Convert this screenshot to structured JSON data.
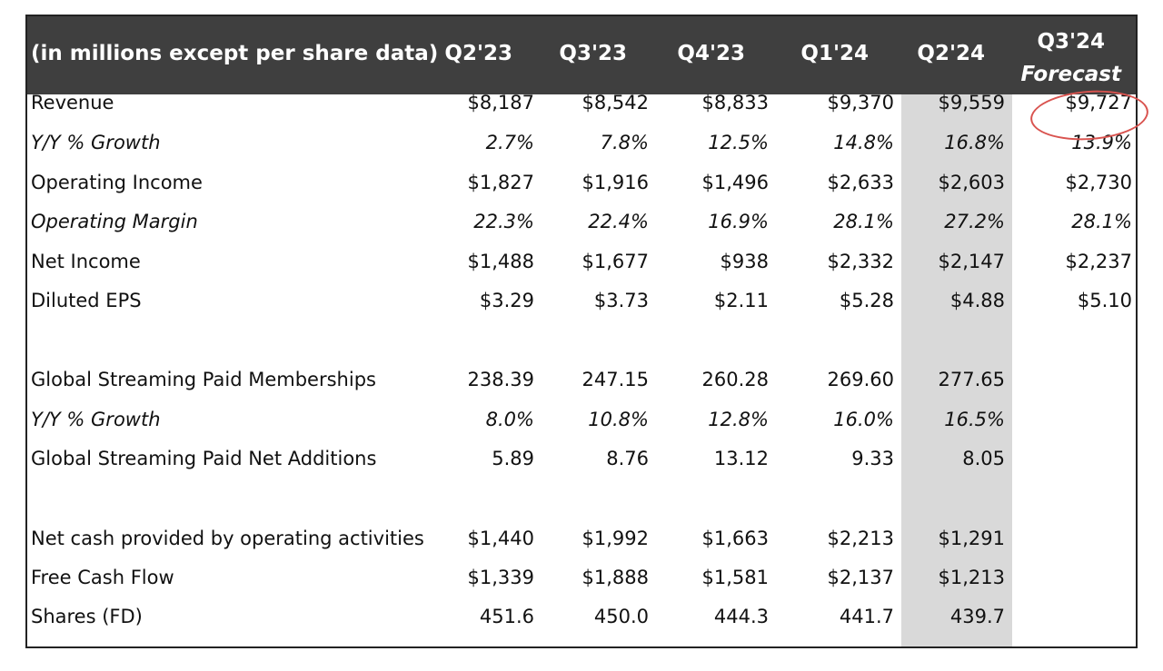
{
  "colors": {
    "header_bg": "#3f3f3f",
    "shade": "#d9d9d9",
    "highlight_circle": "#d9534f"
  },
  "header": {
    "label": "(in millions except per share data)",
    "q2_23": "Q2'23",
    "q3_23": "Q3'23",
    "q4_23": "Q4'23",
    "q1_24": "Q1'24",
    "q2_24": "Q2'24",
    "q3_24_line1": "Q3'24",
    "q3_24_line2": "Forecast"
  },
  "rows": [
    {
      "label": "Revenue",
      "values": [
        "$8,187",
        "$8,542",
        "$8,833",
        "$9,370",
        "$9,559",
        "$9,727"
      ]
    },
    {
      "label": "Y/Y % Growth",
      "values": [
        "2.7%",
        "7.8%",
        "12.5%",
        "14.8%",
        "16.8%",
        "13.9%"
      ]
    },
    {
      "label": "Operating Income",
      "values": [
        "$1,827",
        "$1,916",
        "$1,496",
        "$2,633",
        "$2,603",
        "$2,730"
      ]
    },
    {
      "label": "Operating Margin",
      "values": [
        "22.3%",
        "22.4%",
        "16.9%",
        "28.1%",
        "27.2%",
        "28.1%"
      ]
    },
    {
      "label": "Net Income",
      "values": [
        "$1,488",
        "$1,677",
        "$938",
        "$2,332",
        "$2,147",
        "$2,237"
      ]
    },
    {
      "label": "Diluted EPS",
      "values": [
        "$3.29",
        "$3.73",
        "$2.11",
        "$5.28",
        "$4.88",
        "$5.10"
      ]
    },
    {
      "label": "Global Streaming Paid Memberships",
      "values": [
        "238.39",
        "247.15",
        "260.28",
        "269.60",
        "277.65",
        ""
      ]
    },
    {
      "label": "Y/Y % Growth",
      "values": [
        "8.0%",
        "10.8%",
        "12.8%",
        "16.0%",
        "16.5%",
        ""
      ]
    },
    {
      "label": "Global Streaming Paid Net Additions",
      "values": [
        "5.89",
        "8.76",
        "13.12",
        "9.33",
        "8.05",
        ""
      ]
    },
    {
      "label": "Net cash provided by operating activities",
      "values": [
        "$1,440",
        "$1,992",
        "$1,663",
        "$2,213",
        "$1,291",
        ""
      ]
    },
    {
      "label": "Free Cash Flow",
      "values": [
        "$1,339",
        "$1,888",
        "$1,581",
        "$2,137",
        "$1,213",
        ""
      ]
    },
    {
      "label": "Shares (FD)",
      "values": [
        "451.6",
        "450.0",
        "444.3",
        "441.7",
        "439.7",
        ""
      ]
    }
  ]
}
